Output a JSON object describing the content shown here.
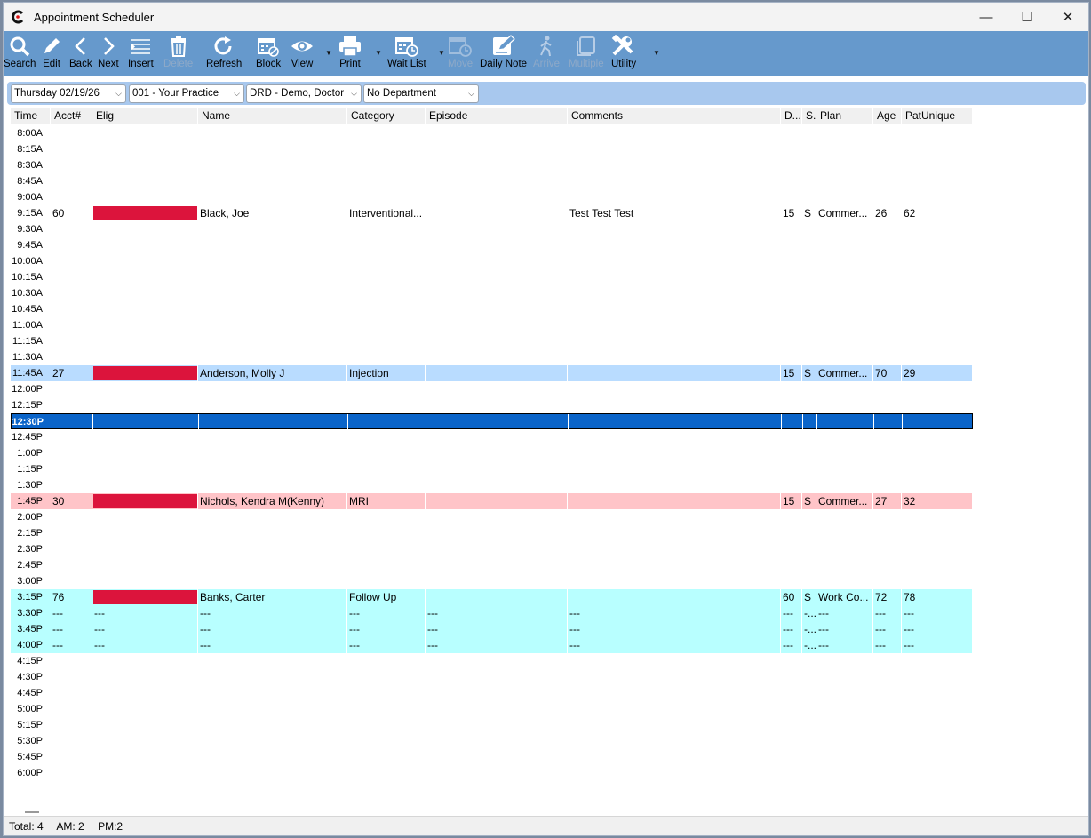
{
  "window": {
    "title": "Appointment Scheduler",
    "minimize": "—",
    "maximize": "☐",
    "close": "✕"
  },
  "toolbar": [
    {
      "label": "Search",
      "icon": "search-icon",
      "disabled": false
    },
    {
      "label": "Edit",
      "icon": "pencil-icon",
      "disabled": false
    },
    {
      "label": "Back",
      "icon": "chevron-left-icon",
      "disabled": false
    },
    {
      "label": "Next",
      "icon": "chevron-right-icon",
      "disabled": false
    },
    {
      "label": "Insert",
      "icon": "insert-lines-icon",
      "disabled": false
    },
    {
      "label": "Delete",
      "icon": "trash-icon",
      "disabled": true
    },
    {
      "label": "Refresh",
      "icon": "refresh-icon",
      "disabled": false
    },
    {
      "label": "Block",
      "icon": "calendar-block-icon",
      "disabled": false
    },
    {
      "label": "View",
      "icon": "eye-icon",
      "disabled": false
    },
    {
      "label": "Print",
      "icon": "printer-icon",
      "disabled": false
    },
    {
      "label": "Wait List",
      "icon": "calendar-clock-icon",
      "disabled": false
    },
    {
      "label": "Move",
      "icon": "calendar-move-icon",
      "disabled": true
    },
    {
      "label": "Daily Note",
      "icon": "note-pencil-icon",
      "disabled": false
    },
    {
      "label": "Arrive",
      "icon": "walking-person-icon",
      "disabled": true
    },
    {
      "label": "Multiple",
      "icon": "multiple-pages-icon",
      "disabled": true
    },
    {
      "label": "Utility",
      "icon": "tools-icon",
      "disabled": false
    }
  ],
  "filters": {
    "date": "Thursday 02/19/26",
    "practice": "001 - Your Practice",
    "doctor": "DRD - Demo, Doctor",
    "department": "No Department"
  },
  "columns": [
    "Time",
    "Acct#",
    "Elig",
    "Name",
    "Category",
    "Episode",
    "Comments",
    "D...",
    "S...",
    "Plan",
    "Age",
    "PatUnique"
  ],
  "times": [
    "8:00A",
    "8:15A",
    "8:30A",
    "8:45A",
    "9:00A",
    "9:15A",
    "9:30A",
    "9:45A",
    "10:00A",
    "10:15A",
    "10:30A",
    "10:45A",
    "11:00A",
    "11:15A",
    "11:30A",
    "11:45A",
    "12:00P",
    "12:15P",
    "12:30P",
    "12:45P",
    "1:00P",
    "1:15P",
    "1:30P",
    "1:45P",
    "2:00P",
    "2:15P",
    "2:30P",
    "2:45P",
    "3:00P",
    "3:15P",
    "3:30P",
    "3:45P",
    "4:00P",
    "4:15P",
    "4:30P",
    "4:45P",
    "5:00P",
    "5:15P",
    "5:30P",
    "5:45P",
    "6:00P"
  ],
  "appointments": [
    {
      "time_index": 5,
      "acct": "60",
      "name": "Black, Joe",
      "category": "Interventional...",
      "episode": "",
      "comments": "Test Test Test",
      "d": "15",
      "s": "S",
      "plan": "Commer...",
      "age": "26",
      "patunique": "62",
      "color": "#ffffff",
      "elig": true
    },
    {
      "time_index": 15,
      "acct": "27",
      "name": "Anderson, Molly J",
      "category": "Injection",
      "episode": "",
      "comments": "",
      "d": "15",
      "s": "S",
      "plan": "Commer...",
      "age": "70",
      "patunique": "29",
      "color": "#b9dcff",
      "elig": true
    },
    {
      "time_index": 18,
      "acct": "",
      "name": "",
      "category": "",
      "episode": "",
      "comments": "",
      "d": "",
      "s": "",
      "plan": "",
      "age": "",
      "patunique": "",
      "color": "#0a64c9",
      "elig": false,
      "selected": true
    },
    {
      "time_index": 23,
      "acct": "30",
      "name": "Nichols, Kendra M(Kenny)",
      "category": "MRI",
      "episode": "",
      "comments": "",
      "d": "15",
      "s": "S",
      "plan": "Commer...",
      "age": "27",
      "patunique": "32",
      "color": "#ffc4c8",
      "elig": true
    },
    {
      "time_index": 29,
      "acct": "76",
      "name": "Banks, Carter",
      "category": "Follow Up",
      "episode": "",
      "comments": "",
      "d": "60",
      "s": "S",
      "plan": "Work Co...",
      "age": "72",
      "patunique": "78",
      "color": "#b8ffff",
      "elig": true
    },
    {
      "time_index": 30,
      "acct": "---",
      "elig_text": "---",
      "name": "---",
      "category": "---",
      "episode": "---",
      "comments": "---",
      "d": "---",
      "s": "-...",
      "plan": "---",
      "age": "---",
      "patunique": "---",
      "color": "#b8ffff",
      "elig": false
    },
    {
      "time_index": 31,
      "acct": "---",
      "elig_text": "---",
      "name": "---",
      "category": "---",
      "episode": "---",
      "comments": "---",
      "d": "---",
      "s": "-...",
      "plan": "---",
      "age": "---",
      "patunique": "---",
      "color": "#b8ffff",
      "elig": false
    },
    {
      "time_index": 32,
      "acct": "---",
      "elig_text": "---",
      "name": "---",
      "category": "---",
      "episode": "---",
      "comments": "---",
      "d": "---",
      "s": "-...",
      "plan": "---",
      "age": "---",
      "patunique": "---",
      "color": "#b8ffff",
      "elig": false
    }
  ],
  "status": {
    "total": "Total: 4",
    "am": "AM: 2",
    "pm": "PM:2"
  }
}
